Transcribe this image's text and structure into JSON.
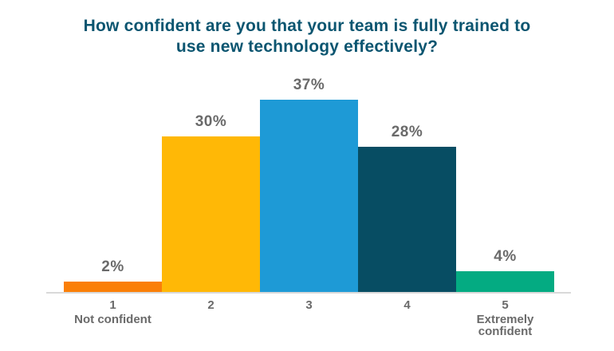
{
  "chart_data": {
    "type": "bar",
    "title": "How confident are you that your team is fully trained to use new technology effectively?",
    "categories": [
      "1",
      "2",
      "3",
      "4",
      "5"
    ],
    "category_sublabels": [
      "Not confident",
      "",
      "",
      "",
      "Extremely confident"
    ],
    "values": [
      2,
      30,
      37,
      28,
      4
    ],
    "value_labels": [
      "2%",
      "30%",
      "37%",
      "28%",
      "4%"
    ],
    "bar_colors": [
      "#FA7F08",
      "#FFB806",
      "#1E9AD6",
      "#074D63",
      "#04AB82"
    ],
    "ylim": [
      0,
      40
    ],
    "grid": false,
    "legend": false,
    "xlabel": "",
    "ylabel": "",
    "title_color": "#0B5570",
    "label_color": "#6A6A6A",
    "axis_line_color": "#D9D9D9"
  }
}
